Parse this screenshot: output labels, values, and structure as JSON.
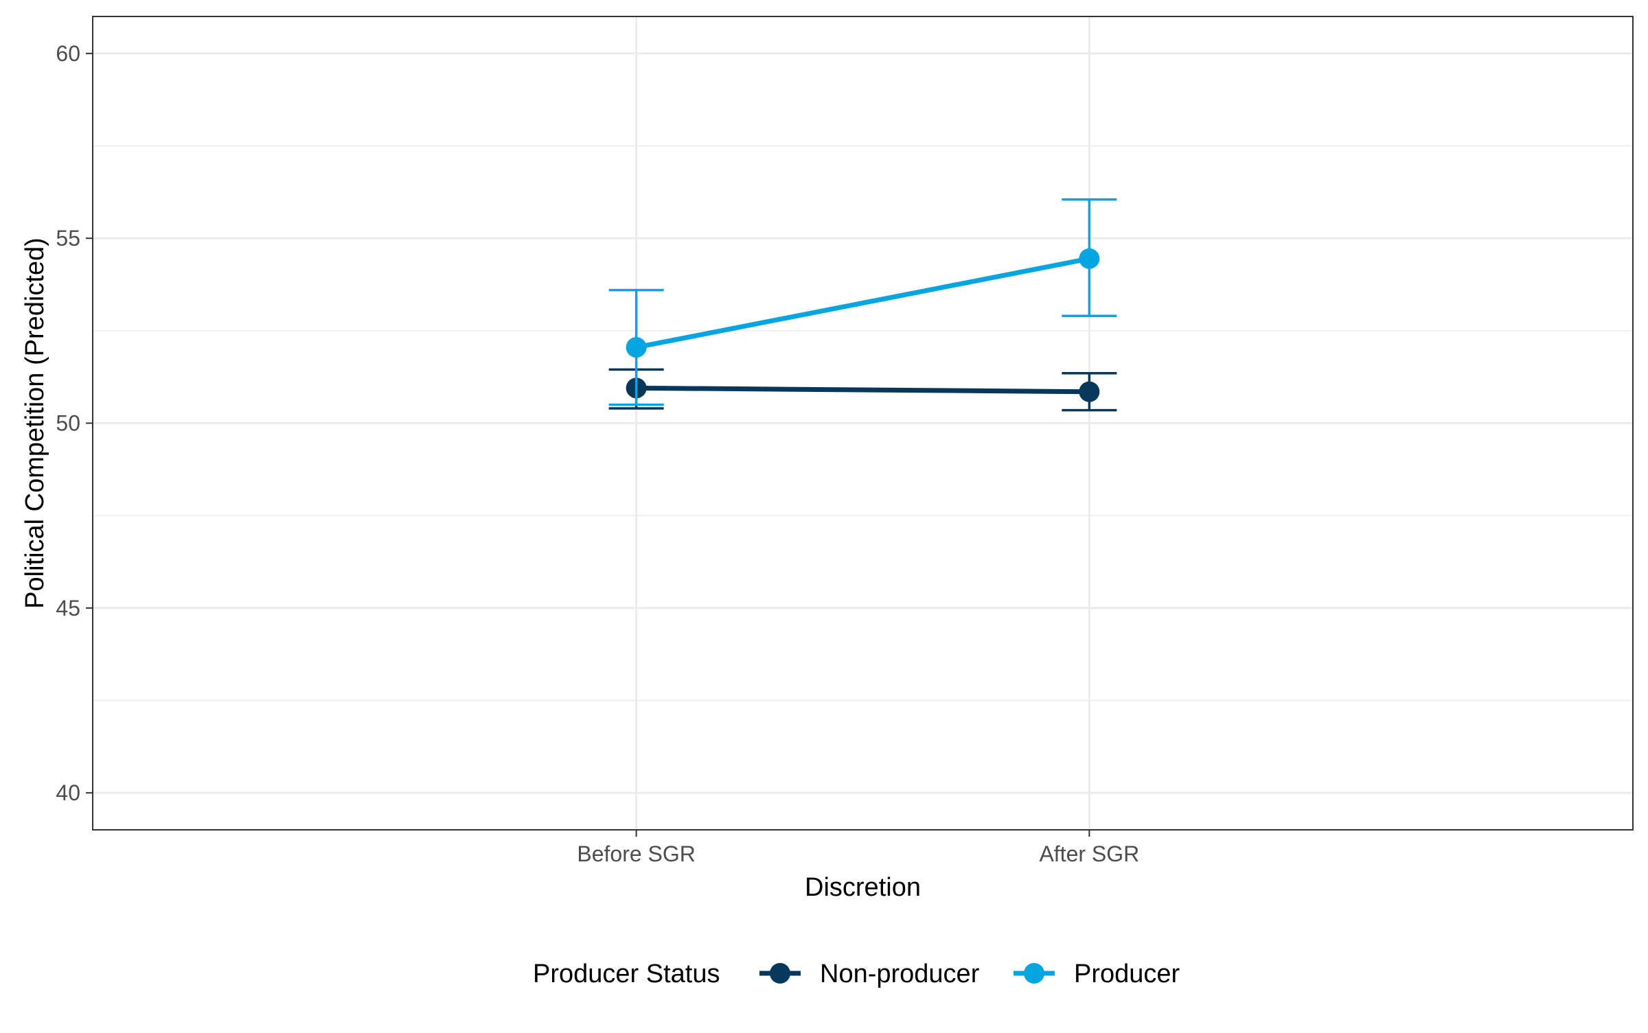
{
  "chart_data": {
    "type": "line",
    "title": "",
    "xlabel": "Discretion",
    "ylabel": "Political Competition (Predicted)",
    "categories": [
      "Before SGR",
      "After SGR"
    ],
    "ylim": [
      39,
      61
    ],
    "y_ticks": [
      40,
      45,
      50,
      55,
      60
    ],
    "grid": true,
    "legend": {
      "title": "Producer Status",
      "position": "bottom"
    },
    "series": [
      {
        "name": "Non-producer",
        "color": "#08375c",
        "values": [
          50.95,
          50.85
        ],
        "ci_lower": [
          50.4,
          50.35
        ],
        "ci_upper": [
          51.45,
          51.35
        ]
      },
      {
        "name": "Producer",
        "color": "#05a5e2",
        "values": [
          52.05,
          54.45
        ],
        "ci_lower": [
          50.5,
          52.9
        ],
        "ci_upper": [
          53.6,
          56.05
        ]
      }
    ]
  }
}
